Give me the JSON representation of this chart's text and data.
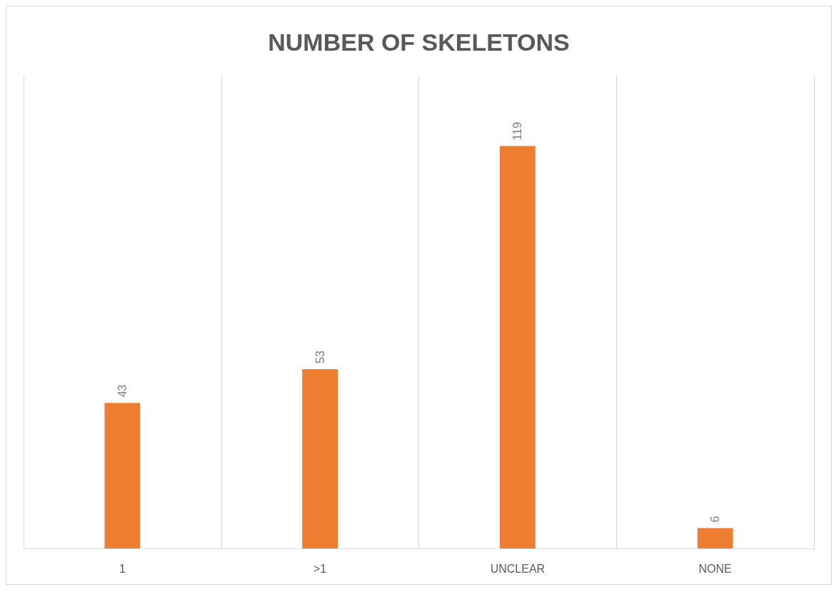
{
  "chart_data": {
    "type": "bar",
    "title": "NUMBER OF SKELETONS",
    "categories": [
      "1",
      ">1",
      "UNCLEAR",
      "NONE"
    ],
    "values": [
      43,
      53,
      119,
      6
    ],
    "color": "#ed7d31",
    "ylim": [
      0,
      140
    ],
    "grid": "x",
    "data_labels": true
  }
}
